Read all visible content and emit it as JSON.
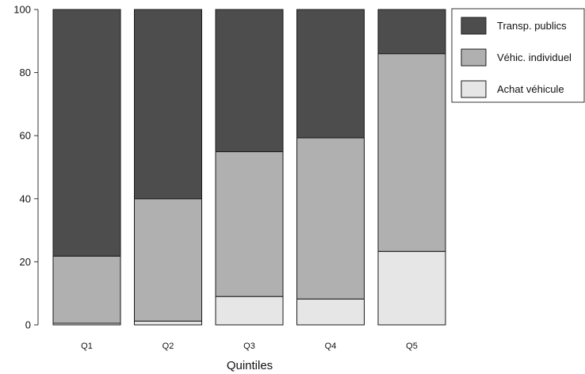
{
  "chart_data": {
    "type": "bar",
    "stacked": true,
    "categories": [
      "Q1",
      "Q2",
      "Q3",
      "Q4",
      "Q5"
    ],
    "series": [
      {
        "name": "Achat véhicule",
        "color": "#e6e6e6",
        "values": [
          0.5,
          1.2,
          9.0,
          8.2,
          23.3
        ]
      },
      {
        "name": "Véhic. individuel",
        "color": "#b0b0b0",
        "values": [
          21.3,
          38.8,
          45.9,
          51.1,
          62.7
        ]
      },
      {
        "name": "Transp. publics",
        "color": "#4d4d4d",
        "values": [
          78.2,
          60.0,
          45.1,
          40.7,
          14.0
        ]
      }
    ],
    "xlabel": "Quintiles",
    "ylabel": "",
    "ylim": [
      0,
      100
    ],
    "yticks": [
      "0",
      "20",
      "40",
      "60",
      "80",
      "100"
    ],
    "legend": {
      "placement": "top-right",
      "entries": [
        "Transp. publics",
        "Véhic. individuel",
        "Achat véhicule"
      ]
    },
    "grid": false
  }
}
